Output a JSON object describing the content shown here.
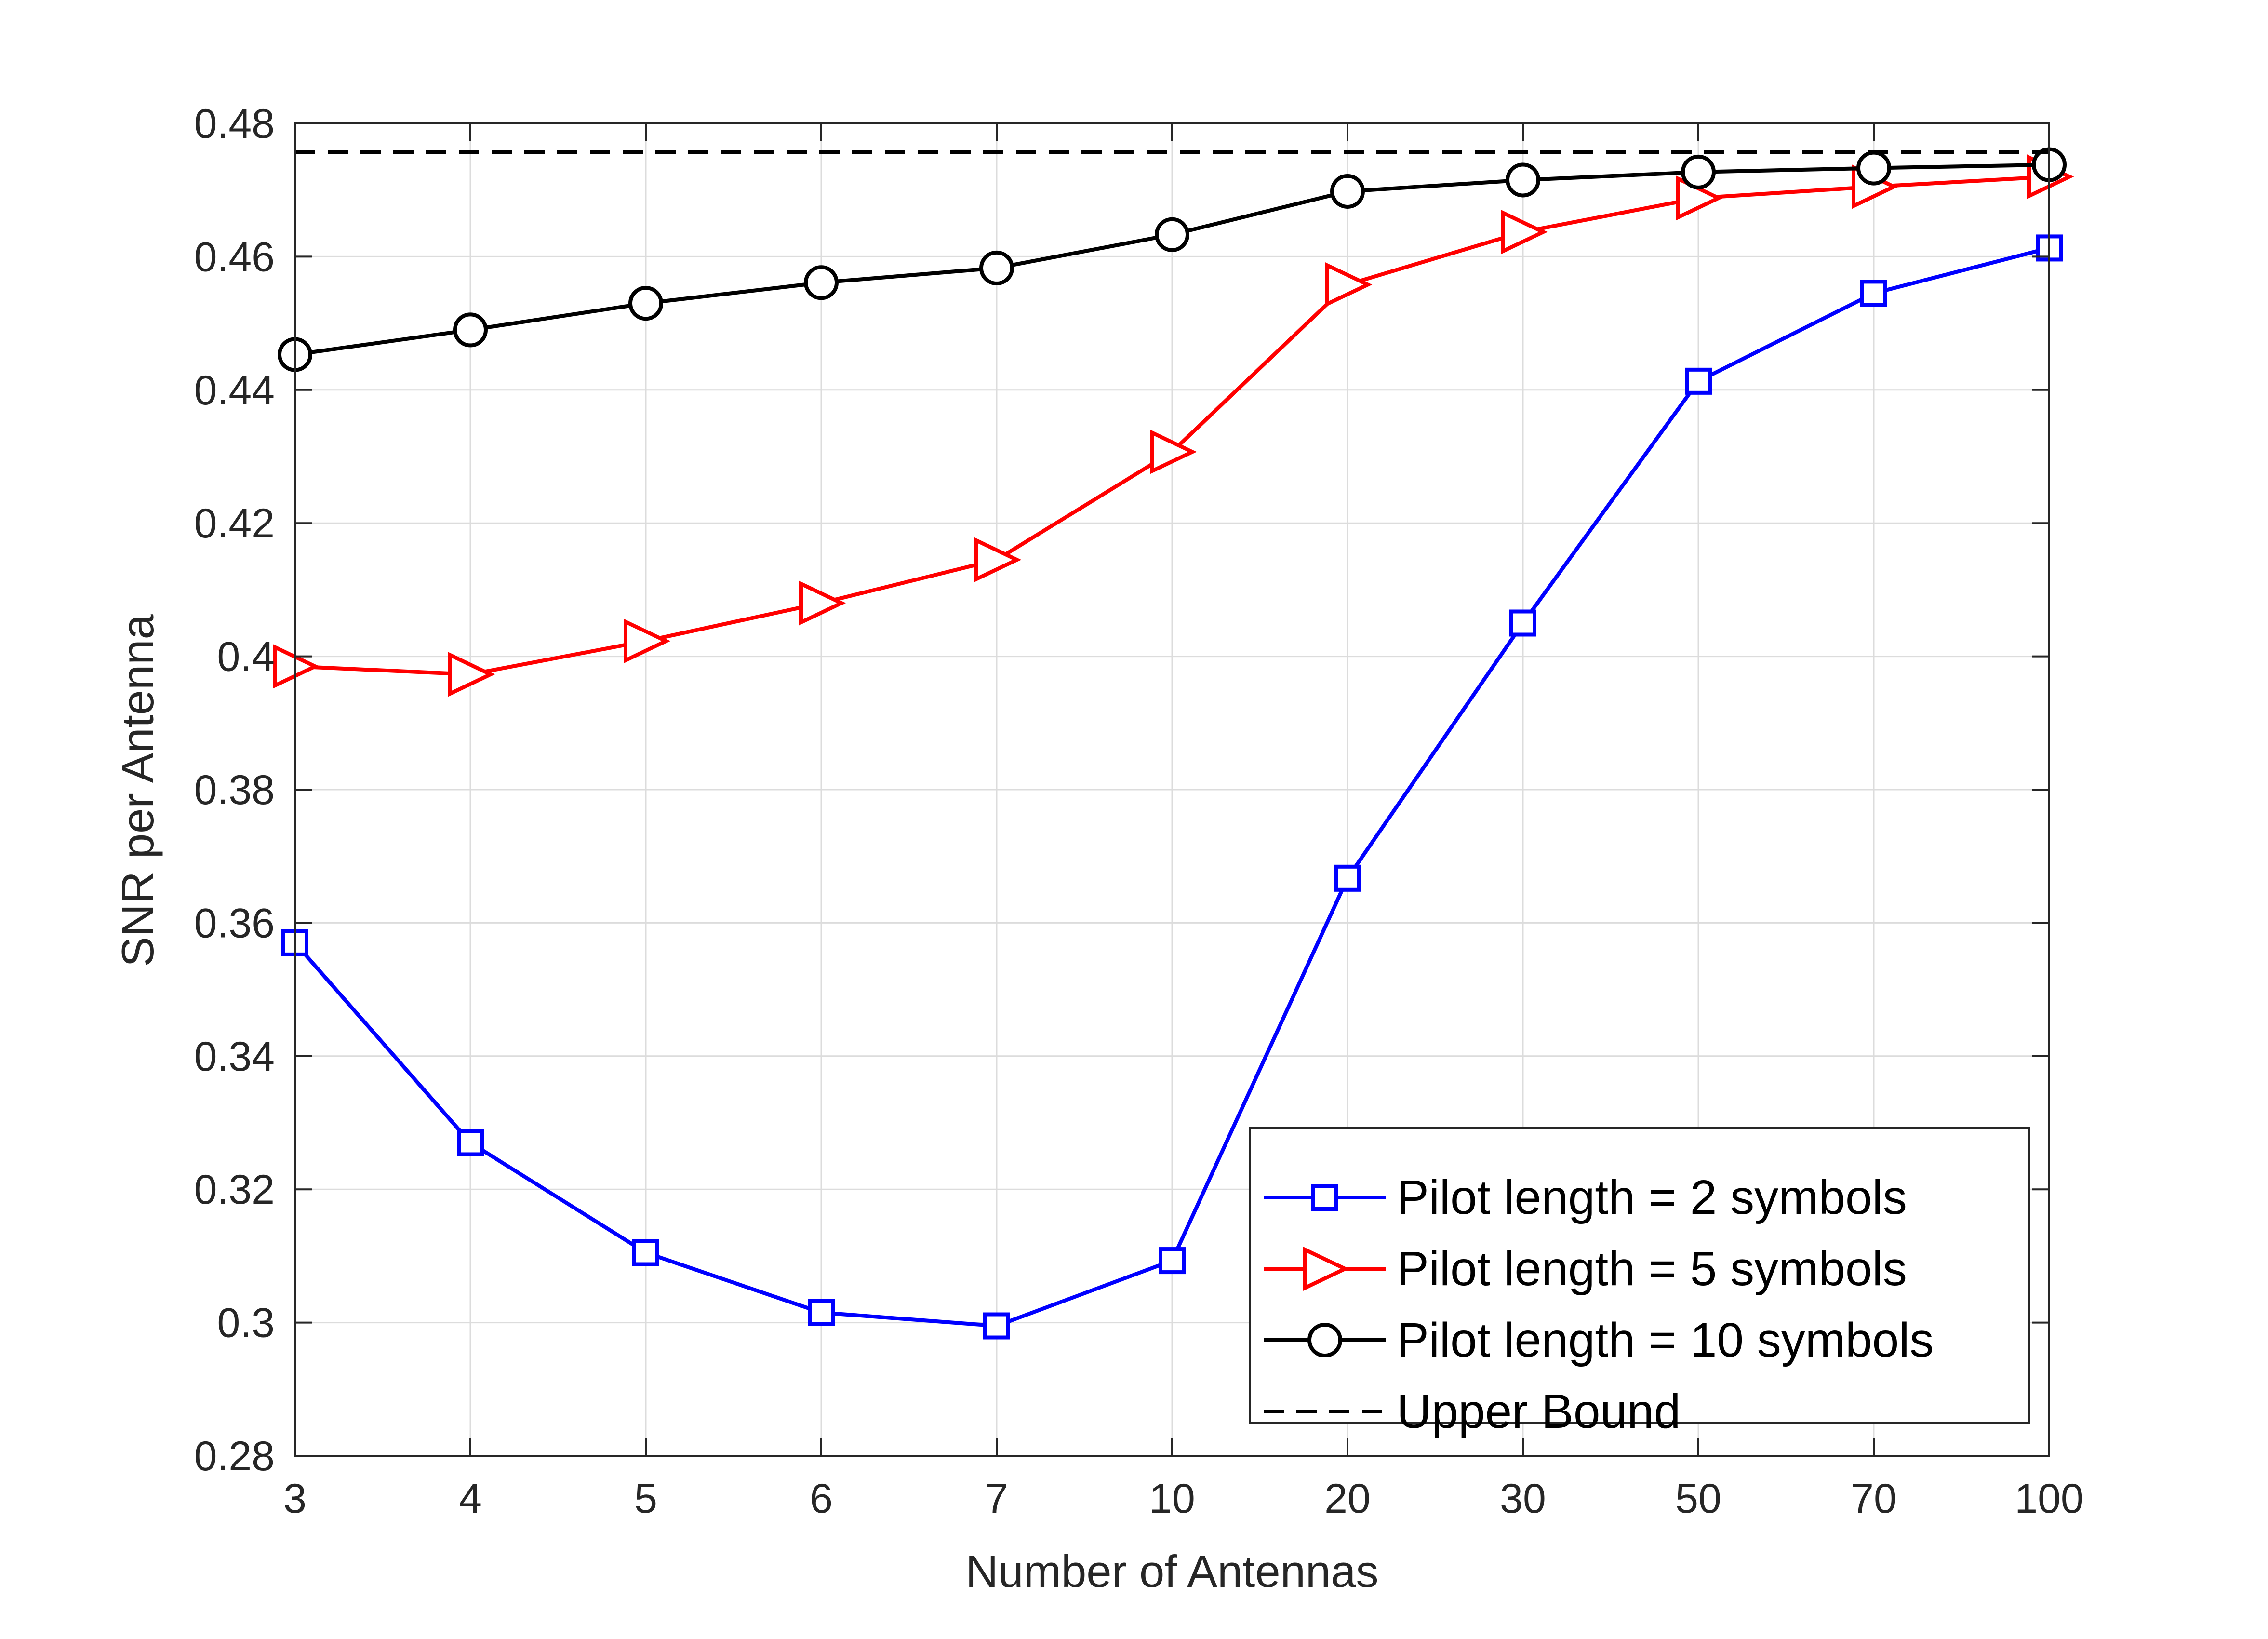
{
  "chart_data": {
    "type": "line",
    "xlabel": "Number of Antennas",
    "ylabel": "SNR per Antenna",
    "categories": [
      "3",
      "4",
      "5",
      "6",
      "7",
      "10",
      "20",
      "30",
      "50",
      "70",
      "100"
    ],
    "ylim": [
      0.28,
      0.48
    ],
    "yticks": [
      0.28,
      0.3,
      0.32,
      0.34,
      0.36,
      0.38,
      0.4,
      0.42,
      0.44,
      0.46,
      0.48
    ],
    "ytick_labels": [
      "0.28",
      "0.3",
      "0.32",
      "0.34",
      "0.36",
      "0.38",
      "0.4",
      "0.42",
      "0.44",
      "0.46",
      "0.48"
    ],
    "grid": true,
    "legend_position": "bottom-right",
    "series": [
      {
        "name": "Pilot length = 2 symbols",
        "color": "#0000ff",
        "marker": "square",
        "values": [
          0.357,
          0.327,
          0.3105,
          0.3015,
          0.2995,
          0.3093,
          0.3667,
          0.405,
          0.4413,
          0.4545,
          0.4613
        ]
      },
      {
        "name": "Pilot length = 5 symbols",
        "color": "#ff0000",
        "marker": "triangle-right",
        "values": [
          0.3985,
          0.3973,
          0.4023,
          0.408,
          0.4145,
          0.4307,
          0.4558,
          0.4637,
          0.4688,
          0.4705,
          0.472
        ]
      },
      {
        "name": "Pilot length = 10 symbols",
        "color": "#000000",
        "marker": "circle",
        "values": [
          0.4453,
          0.449,
          0.453,
          0.4561,
          0.4583,
          0.4633,
          0.4698,
          0.4715,
          0.4727,
          0.4733,
          0.4738
        ]
      },
      {
        "name": "Upper Bound",
        "color": "#000000",
        "marker": "none",
        "dashed": true,
        "values": [
          0.4757,
          0.4757,
          0.4757,
          0.4757,
          0.4757,
          0.4757,
          0.4757,
          0.4757,
          0.4757,
          0.4757,
          0.4757
        ]
      }
    ]
  }
}
